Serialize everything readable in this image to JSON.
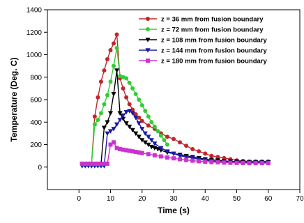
{
  "chart_data": {
    "type": "line",
    "xlabel": "Time (s)",
    "ylabel": "Temperature (Deg. C)",
    "xlim": [
      -10,
      70
    ],
    "ylim": [
      -200,
      1400
    ],
    "xticks": [
      0,
      10,
      20,
      30,
      40,
      50,
      60,
      70
    ],
    "yticks": [
      0,
      200,
      400,
      600,
      800,
      1000,
      1200,
      1400
    ],
    "grid": false,
    "legend": "top-right",
    "series": [
      {
        "name": "z = 36 mm from fusion boundary",
        "color": "#c0262c",
        "marker": "circle",
        "x": [
          1,
          2,
          3,
          4,
          5,
          6,
          7,
          8,
          9,
          10,
          11,
          12,
          13,
          14,
          15,
          16,
          17,
          18,
          19,
          20,
          22,
          24,
          26,
          28,
          30,
          32,
          34,
          36,
          38,
          40,
          42,
          44,
          46,
          48,
          50,
          52,
          54,
          56,
          58,
          60
        ],
        "y": [
          30,
          30,
          30,
          30,
          450,
          620,
          760,
          860,
          960,
          1040,
          1100,
          1180,
          790,
          700,
          620,
          560,
          510,
          470,
          440,
          410,
          370,
          340,
          300,
          270,
          250,
          220,
          190,
          160,
          140,
          120,
          100,
          90,
          80,
          70,
          60,
          55,
          50,
          50,
          50,
          50
        ]
      },
      {
        "name": "z = 72 mm from fusion boundary",
        "color": "#33cc33",
        "marker": "circle",
        "x": [
          1,
          2,
          3,
          4,
          5,
          6,
          7,
          8,
          9,
          10,
          11,
          12,
          13,
          14,
          15,
          16,
          17,
          18,
          19,
          20,
          21,
          22,
          23,
          24,
          25,
          26,
          27,
          28
        ],
        "y": [
          30,
          30,
          30,
          30,
          380,
          420,
          480,
          560,
          640,
          760,
          900,
          1060,
          810,
          800,
          790,
          750,
          700,
          650,
          600,
          550,
          500,
          450,
          400,
          360,
          320,
          280,
          240,
          200
        ]
      },
      {
        "name": "z = 108 mm from fusion boundary",
        "color": "#000000",
        "marker": "triangle-down",
        "x": [
          1,
          2,
          3,
          4,
          5,
          6,
          7,
          8,
          9,
          10,
          11,
          12,
          13,
          14,
          15,
          16,
          17,
          18,
          19,
          20,
          21,
          22,
          23,
          24,
          25,
          26,
          28,
          30,
          32,
          34,
          36,
          38,
          40,
          42,
          44,
          46,
          48,
          50,
          52,
          54,
          56,
          58,
          60
        ],
        "y": [
          30,
          30,
          30,
          30,
          30,
          30,
          30,
          350,
          400,
          480,
          650,
          860,
          480,
          430,
          390,
          360,
          330,
          300,
          270,
          240,
          220,
          200,
          180,
          170,
          160,
          150,
          130,
          120,
          110,
          100,
          90,
          80,
          70,
          65,
          60,
          55,
          50,
          50,
          45,
          45,
          45,
          45,
          45
        ]
      },
      {
        "name": "z = 144 mm from fusion boundary",
        "color": "#1a1aa6",
        "marker": "triangle-down",
        "x": [
          1,
          2,
          3,
          4,
          5,
          6,
          7,
          8,
          9,
          10,
          11,
          12,
          13,
          14,
          15,
          16,
          17,
          18,
          19,
          20,
          21,
          22,
          23,
          24,
          26,
          28,
          30,
          32,
          34,
          36,
          38,
          40,
          42,
          44,
          46,
          48,
          50,
          52,
          54,
          56,
          58,
          60
        ],
        "y": [
          10,
          10,
          10,
          10,
          10,
          10,
          10,
          10,
          300,
          320,
          340,
          380,
          420,
          460,
          490,
          500,
          480,
          440,
          390,
          340,
          300,
          270,
          240,
          210,
          170,
          140,
          120,
          100,
          90,
          80,
          70,
          60,
          55,
          50,
          45,
          40,
          40,
          40,
          40,
          40,
          40,
          40
        ]
      },
      {
        "name": "z = 180 mm from fusion boundary",
        "color": "#cc33cc",
        "marker": "square",
        "x": [
          1,
          2,
          3,
          4,
          5,
          6,
          7,
          8,
          9,
          10,
          11,
          12,
          13,
          14,
          15,
          16,
          17,
          18,
          19,
          20,
          22,
          24,
          26,
          28,
          30,
          32,
          34,
          36,
          38,
          40,
          42,
          44,
          46,
          48,
          50,
          52,
          54,
          56,
          58,
          60
        ],
        "y": [
          30,
          30,
          30,
          30,
          30,
          30,
          30,
          30,
          30,
          200,
          220,
          170,
          160,
          155,
          150,
          145,
          140,
          135,
          130,
          125,
          115,
          105,
          95,
          85,
          78,
          70,
          63,
          57,
          52,
          48,
          45,
          43,
          40,
          38,
          37,
          36,
          35,
          35,
          35,
          35
        ]
      }
    ]
  }
}
